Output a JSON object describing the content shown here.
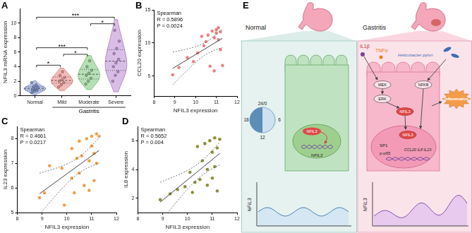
{
  "panel_labels": [
    "A",
    "B",
    "C",
    "D",
    "E"
  ],
  "chart_data": [
    {
      "type": "violin",
      "ylabel": "NFIL3 mRNA expression",
      "categories": [
        "Normal",
        "Mild",
        "Moderate",
        "Severe"
      ],
      "colors": [
        "#7b8fd1",
        "#e8837f",
        "#7cc47a",
        "#b887cf"
      ],
      "values": [
        [
          0.4,
          0.6,
          0.7,
          0.8,
          0.9,
          1.0,
          1.0,
          1.1,
          1.2,
          1.3,
          1.5,
          1.8
        ],
        [
          1.2,
          1.5,
          1.8,
          2.0,
          2.2,
          2.5,
          2.8,
          3.3
        ],
        [
          1.6,
          2.0,
          2.4,
          2.8,
          3.1,
          3.5,
          4.0,
          4.8
        ],
        [
          2.0,
          2.8,
          3.3,
          4.0,
          4.5,
          5.0,
          5.8,
          6.5,
          7.5,
          9.0
        ]
      ],
      "ylim": [
        0,
        12
      ],
      "yticks": [
        0,
        2,
        4,
        6,
        8,
        10
      ],
      "comparisons": [
        {
          "groups": [
            "Normal",
            "Mild"
          ],
          "label": "*"
        },
        {
          "groups": [
            "Mild",
            "Moderate"
          ],
          "label": "*"
        },
        {
          "groups": [
            "Moderate",
            "Severe"
          ],
          "label": "*"
        },
        {
          "groups": [
            "Normal",
            "Moderate"
          ],
          "label": "***"
        },
        {
          "groups": [
            "Normal",
            "Severe"
          ],
          "label": "***"
        }
      ],
      "annotations": [
        {
          "text": "Gastritis",
          "from": "Mild",
          "to": "Severe"
        }
      ]
    },
    {
      "type": "scatter",
      "xlabel": "NFIL3 expression",
      "ylabel": "CCL20 expression",
      "color": "#e8837f",
      "x": [
        8.9,
        9.2,
        9.6,
        9.9,
        10.1,
        10.3,
        10.4,
        10.5,
        10.6,
        10.7,
        10.8,
        10.9,
        10.9,
        11.0,
        11.0,
        11.1,
        11.1,
        11.2,
        11.2,
        11.3
      ],
      "values": [
        5.2,
        6.3,
        7.8,
        7.2,
        8.5,
        11.0,
        9.6,
        10.2,
        11.2,
        6.5,
        11.8,
        10.8,
        5.8,
        12.0,
        11.5,
        10.5,
        12.3,
        9.0,
        11.7,
        6.6
      ],
      "xlim": [
        8,
        12
      ],
      "xticks": [
        8,
        9,
        10,
        11,
        12
      ],
      "ylim": [
        2,
        15
      ],
      "yticks": [
        5,
        10,
        15
      ],
      "annotations": [
        "Spearman",
        "R = 0.5896",
        "P = 0.0024"
      ]
    },
    {
      "type": "scatter",
      "xlabel": "NFIL3 expression",
      "ylabel": "IL23 expression",
      "color": "#f0a04b",
      "x": [
        8.9,
        9.1,
        9.3,
        9.8,
        10.2,
        10.3,
        10.4,
        10.5,
        10.5,
        10.6,
        10.7,
        10.8,
        10.9,
        10.9,
        11.0,
        11.0,
        11.1,
        11.1,
        11.2,
        11.2,
        11.3,
        10.2,
        9.9
      ],
      "values": [
        5.6,
        5.8,
        6.9,
        6.8,
        7.6,
        5.8,
        7.2,
        6.6,
        7.9,
        7.3,
        6.1,
        8.0,
        7.1,
        5.9,
        7.7,
        8.1,
        7.4,
        6.3,
        8.2,
        7.0,
        8.1,
        6.4,
        5.3
      ],
      "xlim": [
        8,
        12
      ],
      "xticks": [
        8,
        9,
        10,
        11,
        12
      ],
      "ylim": [
        5,
        8.5
      ],
      "yticks": [
        5,
        6,
        7,
        8
      ],
      "annotations": [
        "Spearman",
        "R = 0.4661",
        "P = 0.0217"
      ]
    },
    {
      "type": "scatter",
      "xlabel": "NFIL3 expression",
      "ylabel": "IL8 expression",
      "color": "#8e8e3c",
      "x": [
        8.9,
        9.3,
        9.6,
        9.9,
        10.2,
        10.3,
        10.4,
        10.5,
        10.6,
        10.7,
        10.8,
        10.9,
        11.0,
        11.0,
        11.1,
        11.1,
        11.2,
        11.2,
        11.3,
        10.1,
        10.8
      ],
      "values": [
        1.9,
        2.3,
        2.6,
        2.8,
        2.4,
        3.1,
        5.6,
        3.3,
        4.6,
        5.8,
        2.9,
        6.0,
        3.4,
        5.2,
        6.2,
        4.2,
        5.5,
        2.5,
        6.1,
        3.8,
        4.0
      ],
      "xlim": [
        8,
        12
      ],
      "xticks": [
        8,
        9,
        10,
        11,
        12
      ],
      "ylim": [
        1,
        7
      ],
      "yticks": [
        2,
        4,
        6
      ],
      "annotations": [
        "Spearman",
        "R = 0.5652",
        "P = 0.004"
      ]
    }
  ],
  "diagram": {
    "normal": {
      "title": "Normal",
      "clock": [
        "24/0",
        "6",
        "12",
        "18"
      ],
      "protein": "NFIL3",
      "gene": "NFIL3",
      "plot_label": "NFIL3"
    },
    "gastritis": {
      "title": "Gastritis",
      "stimuli": [
        "IL1β",
        "TNFα"
      ],
      "pathogen": "Helicobacter pylori",
      "kinases": [
        "MEK",
        "ERK"
      ],
      "factor": "NFKB",
      "protein": "NFIL3",
      "nuclear_protein": "NFIL3",
      "nuclear_factors": [
        "SP1",
        "p-p65"
      ],
      "genes": "CCL20 IL8 IL23",
      "outcome": "Inflammation",
      "plot_label": "NFIL3"
    }
  }
}
